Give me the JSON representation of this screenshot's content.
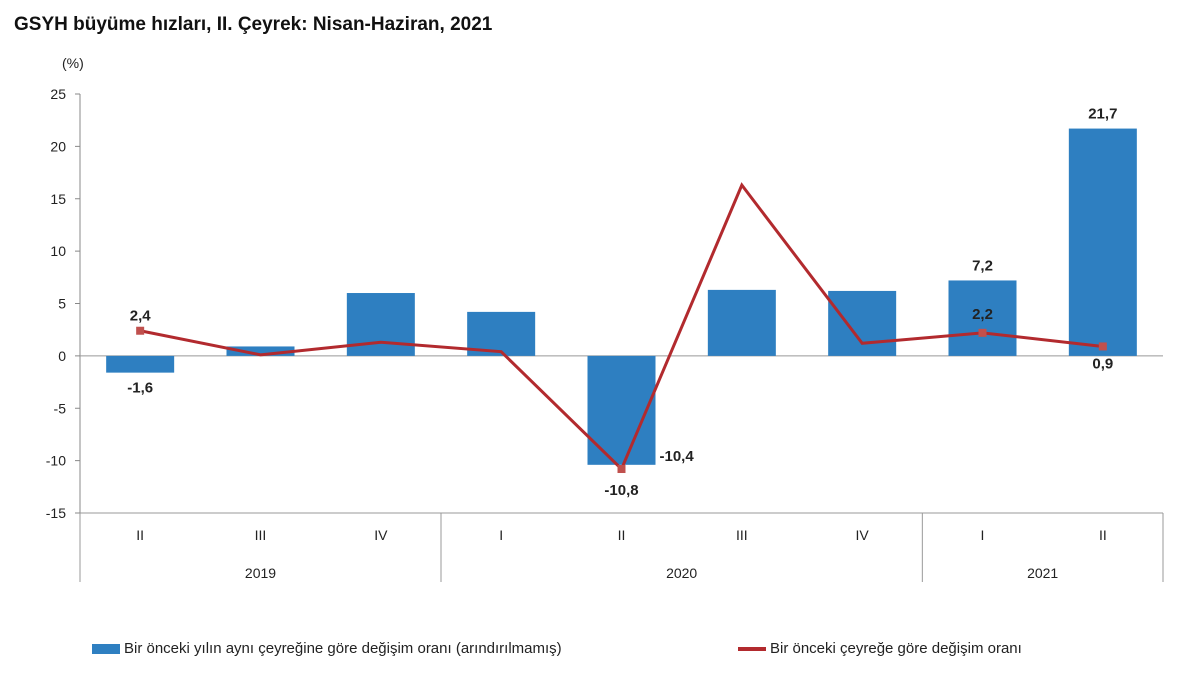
{
  "chart_data": {
    "type": "bar+line",
    "title": "GSYH büyüme hızları, II. Çeyrek: Nisan-Haziran, 2021",
    "ylabel": "(%)",
    "ylim": [
      -15,
      25
    ],
    "yticks": [
      25,
      20,
      15,
      10,
      5,
      0,
      -5,
      -10,
      -15
    ],
    "categories": [
      "II",
      "III",
      "IV",
      "I",
      "II",
      "III",
      "IV",
      "I",
      "II"
    ],
    "groups": [
      {
        "label": "2019",
        "count": 3
      },
      {
        "label": "2020",
        "count": 4
      },
      {
        "label": "2021",
        "count": 2
      }
    ],
    "series": [
      {
        "name": "Bir önceki yılın aynı çeyreğine göre değişim oranı (arındırılmamış)",
        "type": "bar",
        "color": "#2e7fc1",
        "values": [
          -1.6,
          0.9,
          6.0,
          4.2,
          -10.4,
          6.3,
          6.2,
          7.2,
          21.7
        ],
        "labels": [
          "-1,6",
          "",
          "",
          "",
          "-10,4",
          "",
          "",
          "7,2",
          "21,7"
        ]
      },
      {
        "name": "Bir önceki çeyreğe göre değişim oranı",
        "type": "line",
        "color": "#b22a2e",
        "values": [
          2.4,
          0.1,
          1.3,
          0.4,
          -10.8,
          16.3,
          1.2,
          2.2,
          0.9
        ],
        "labels": [
          "2,4",
          "",
          "",
          "",
          "-10,8",
          "",
          "",
          "2,2",
          "0,9"
        ]
      }
    ],
    "grid": false,
    "legend": "bottom"
  }
}
